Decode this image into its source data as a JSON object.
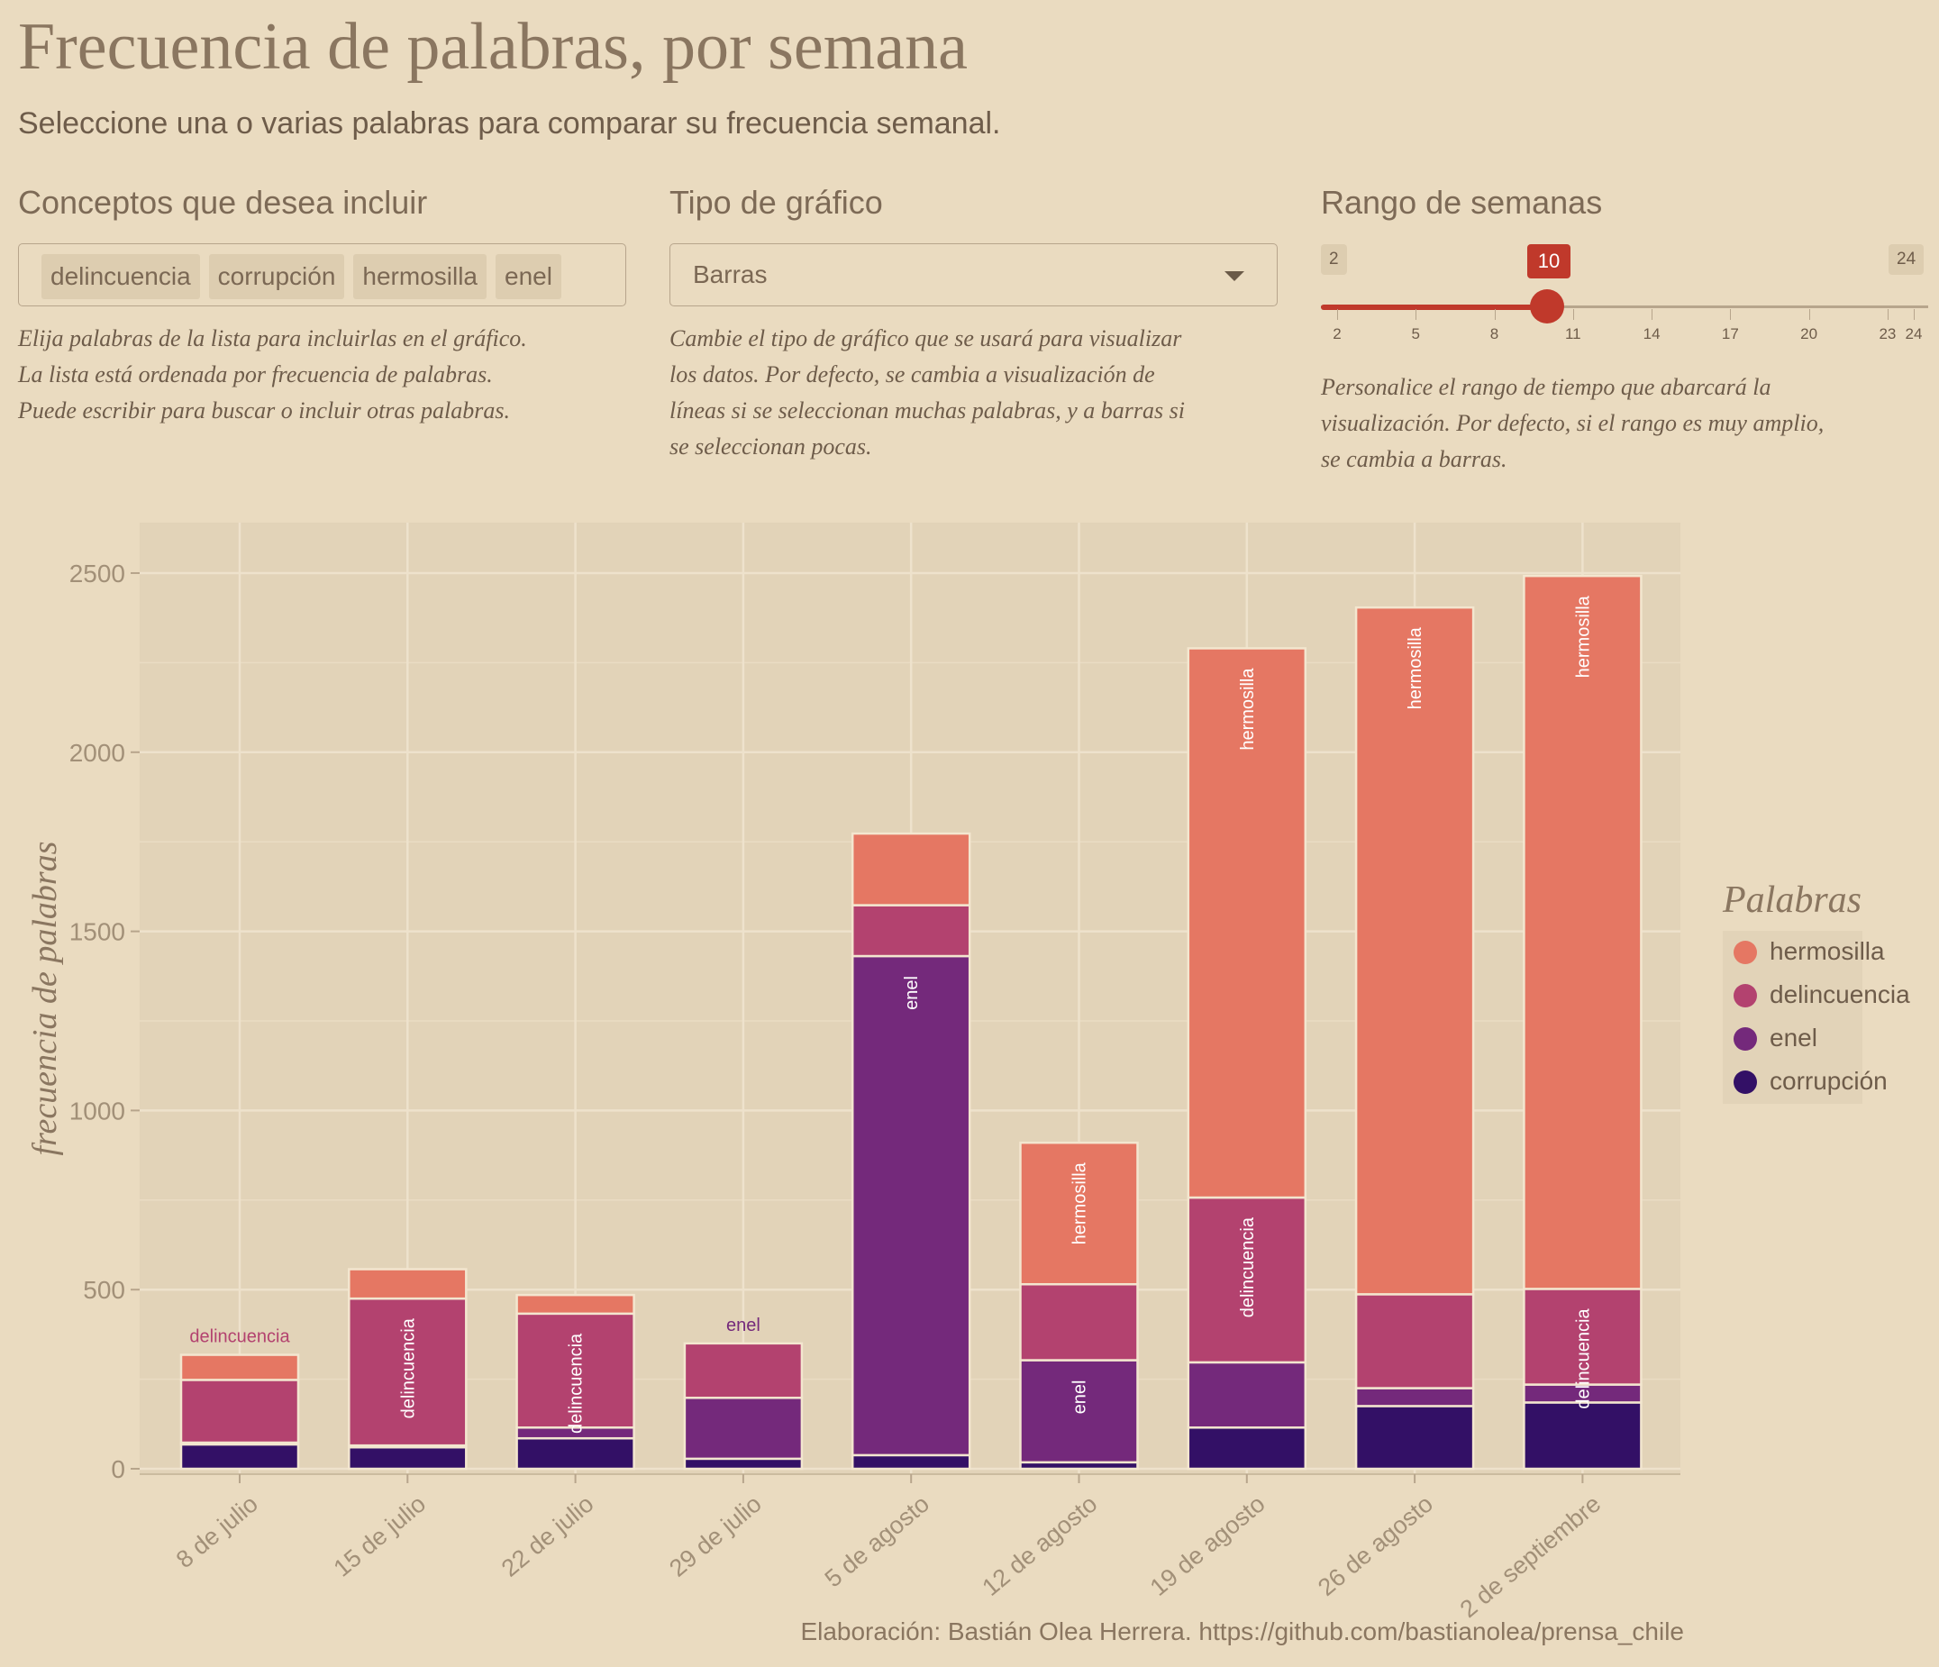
{
  "header": {
    "title": "Frecuencia de palabras, por semana",
    "subtitle": "Seleccione una o varias palabras para comparar su frecuencia semanal."
  },
  "controls": {
    "concepts": {
      "label": "Conceptos que desea incluir",
      "chips": [
        "delincuencia",
        "corrupción",
        "hermosilla",
        "enel"
      ],
      "help": [
        "Elija palabras de la lista para incluirlas en el gráfico.",
        "La lista está ordenada por frecuencia de palabras.",
        "Puede escribir para buscar o incluir otras palabras."
      ]
    },
    "chart_type": {
      "label": "Tipo de gráfico",
      "value": "Barras",
      "help": [
        "Cambie el tipo de gráfico que se usará para visualizar",
        "los datos. Por defecto, se cambia a visualización de",
        "líneas si se seleccionan muchas palabras, y a barras si",
        "se seleccionan pocas."
      ]
    },
    "week_range": {
      "label": "Rango de semanas",
      "min_label": "2",
      "max_label": "24",
      "current_label": "10",
      "min": 2,
      "max": 24,
      "value": 10,
      "ticks": [
        "2",
        "5",
        "8",
        "11",
        "14",
        "17",
        "20",
        "23",
        "24"
      ],
      "help": [
        "Personalice el rango de tiempo que abarcará la",
        "visualización. Por defecto, si el rango es muy amplio,",
        "se cambia a barras."
      ]
    }
  },
  "chart_data": {
    "type": "bar",
    "stacked": true,
    "ylabel": "frecuencia de palabras",
    "ylim": [
      0,
      2640
    ],
    "yticks": [
      0,
      500,
      1000,
      1500,
      2000,
      2500
    ],
    "categories": [
      "8 de julio",
      "15 de julio",
      "22 de julio",
      "29 de julio",
      "5 de agosto",
      "12 de agosto",
      "19 de agosto",
      "26 de agosto",
      "2 de septiembre"
    ],
    "series": [
      {
        "name": "corrupción",
        "color": "#331066",
        "values": [
          68,
          60,
          85,
          28,
          38,
          18,
          115,
          175,
          185
        ]
      },
      {
        "name": "enel",
        "color": "#74297b",
        "values": [
          5,
          5,
          30,
          170,
          1393,
          285,
          182,
          50,
          50
        ]
      },
      {
        "name": "delincuencia",
        "color": "#b3426f",
        "values": [
          175,
          410,
          318,
          152,
          142,
          212,
          460,
          262,
          267
        ]
      },
      {
        "name": "hermosilla",
        "color": "#e57763",
        "values": [
          70,
          82,
          52,
          0,
          200,
          395,
          1533,
          1917,
          1990
        ]
      }
    ],
    "annotations": [
      {
        "category": "8 de julio",
        "text": "delincuencia",
        "orientation": "horizontal",
        "color": "#b3426f"
      },
      {
        "category": "15 de julio",
        "text": "delincuencia",
        "orientation": "vertical"
      },
      {
        "category": "22 de julio",
        "text": "delincuencia",
        "orientation": "vertical"
      },
      {
        "category": "29 de julio",
        "text": "enel",
        "orientation": "horizontal",
        "color": "#74297b"
      },
      {
        "category": "5 de agosto",
        "text": "enel",
        "orientation": "vertical"
      },
      {
        "category": "12 de agosto",
        "text": "hermosilla",
        "orientation": "vertical"
      },
      {
        "category": "12 de agosto",
        "text": "enel",
        "orientation": "vertical"
      },
      {
        "category": "19 de agosto",
        "text": "hermosilla",
        "orientation": "vertical"
      },
      {
        "category": "19 de agosto",
        "text": "delincuencia",
        "orientation": "vertical"
      },
      {
        "category": "26 de agosto",
        "text": "hermosilla",
        "orientation": "vertical"
      },
      {
        "category": "2 de septiembre",
        "text": "hermosilla",
        "orientation": "vertical"
      },
      {
        "category": "2 de septiembre",
        "text": "delincuencia",
        "orientation": "vertical"
      }
    ],
    "legend": {
      "title": "Palabras",
      "position": "right",
      "items": [
        {
          "label": "hermosilla",
          "color": "#e57763"
        },
        {
          "label": "delincuencia",
          "color": "#b3426f"
        },
        {
          "label": "enel",
          "color": "#74297b"
        },
        {
          "label": "corrupción",
          "color": "#331066"
        }
      ]
    },
    "grid": true,
    "caption": "Elaboración: Bastián Olea Herrera. https://github.com/bastianolea/prensa_chile"
  }
}
